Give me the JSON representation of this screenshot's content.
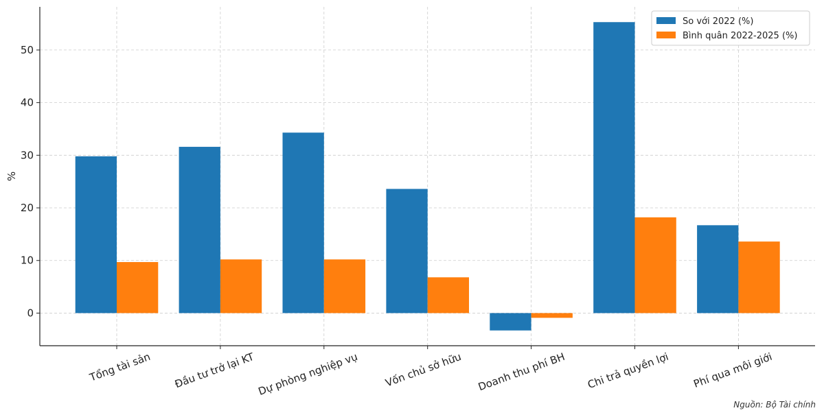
{
  "chart_data": {
    "type": "bar",
    "title": "",
    "xlabel": "",
    "ylabel": "%",
    "ylim": [
      -6.2,
      58.2
    ],
    "yticks": [
      0,
      10,
      20,
      30,
      40,
      50
    ],
    "grid": true,
    "legend_position": "top-right",
    "categories": [
      "Tổng tài sản",
      "Đầu tư trở lại KT",
      "Dự phòng nghiệp vụ",
      "Vốn chủ sở hữu",
      "Doanh thu phí BH",
      "Chi trả quyền lợi",
      "Phí qua môi giới"
    ],
    "series": [
      {
        "name": "So với 2022 (%)",
        "color": "#1f77b4",
        "values": [
          29.8,
          31.6,
          34.3,
          23.6,
          -3.3,
          55.3,
          16.7
        ]
      },
      {
        "name": "Bình quân 2022-2025 (%)",
        "color": "#ff7f0e",
        "values": [
          9.7,
          10.2,
          10.2,
          6.8,
          -0.9,
          18.2,
          13.6
        ]
      }
    ]
  },
  "source_note": "Nguồn: Bộ Tài chính"
}
